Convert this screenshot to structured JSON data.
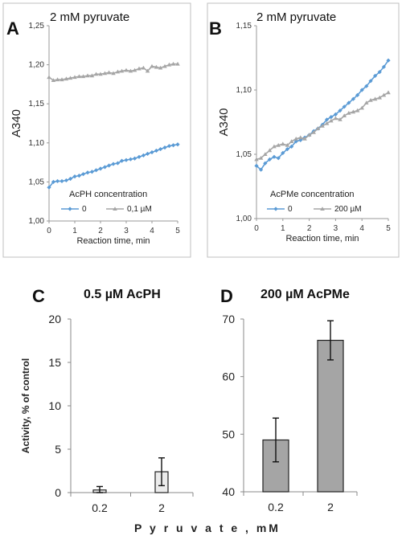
{
  "colors": {
    "blue": "#5b9bd5",
    "gray": "#a6a6a6",
    "barC": "#ececec",
    "barD": "#a5a5a5",
    "frame": "#bfbfbf"
  },
  "chart_data": [
    {
      "id": "A",
      "type": "line",
      "letter": "A",
      "title": "2 mM pyruvate",
      "xlabel": "Reaction time, min",
      "ylabel": "A340",
      "xlim": [
        0,
        5
      ],
      "ylim": [
        1.0,
        1.25
      ],
      "xticks": [
        "0",
        "1",
        "2",
        "3",
        "4",
        "5"
      ],
      "yticks": [
        "1,00",
        "1,05",
        "1,10",
        "1,15",
        "1,20",
        "1,25"
      ],
      "legend_title": "AcPH concentration",
      "series": [
        {
          "name": "0",
          "marker": "diamond",
          "color": "#5b9bd5",
          "x": [
            0,
            0.17,
            0.33,
            0.5,
            0.67,
            0.83,
            1.0,
            1.17,
            1.33,
            1.5,
            1.67,
            1.83,
            2.0,
            2.17,
            2.33,
            2.5,
            2.67,
            2.83,
            3.0,
            3.17,
            3.33,
            3.5,
            3.67,
            3.83,
            4.0,
            4.17,
            4.33,
            4.5,
            4.67,
            4.83,
            5.0
          ],
          "y": [
            1.043,
            1.05,
            1.051,
            1.051,
            1.052,
            1.054,
            1.057,
            1.058,
            1.06,
            1.062,
            1.063,
            1.065,
            1.067,
            1.069,
            1.071,
            1.073,
            1.074,
            1.077,
            1.078,
            1.079,
            1.08,
            1.082,
            1.084,
            1.086,
            1.088,
            1.09,
            1.092,
            1.094,
            1.096,
            1.097,
            1.098
          ]
        },
        {
          "name": "0,1 µM",
          "marker": "triangle",
          "color": "#a6a6a6",
          "x": [
            0,
            0.17,
            0.33,
            0.5,
            0.67,
            0.83,
            1.0,
            1.17,
            1.33,
            1.5,
            1.67,
            1.83,
            2.0,
            2.17,
            2.33,
            2.5,
            2.67,
            2.83,
            3.0,
            3.17,
            3.33,
            3.5,
            3.67,
            3.83,
            4.0,
            4.17,
            4.33,
            4.5,
            4.67,
            4.83,
            5.0
          ],
          "y": [
            1.184,
            1.18,
            1.181,
            1.181,
            1.182,
            1.183,
            1.184,
            1.185,
            1.185,
            1.186,
            1.186,
            1.188,
            1.188,
            1.189,
            1.19,
            1.189,
            1.191,
            1.192,
            1.193,
            1.192,
            1.193,
            1.195,
            1.196,
            1.192,
            1.198,
            1.197,
            1.196,
            1.198,
            1.2,
            1.201,
            1.201
          ]
        }
      ]
    },
    {
      "id": "B",
      "type": "line",
      "letter": "B",
      "title": "2 mM pyruvate",
      "xlabel": "Reaction time, min",
      "ylabel": "A340",
      "xlim": [
        0,
        5
      ],
      "ylim": [
        1.0,
        1.15
      ],
      "xticks": [
        "0",
        "1",
        "2",
        "3",
        "4",
        "5"
      ],
      "yticks": [
        "1,00",
        "1,05",
        "1,10",
        "1,15"
      ],
      "legend_title": "AcPMe concentration",
      "series": [
        {
          "name": "0",
          "marker": "diamond",
          "color": "#5b9bd5",
          "x": [
            0,
            0.17,
            0.33,
            0.5,
            0.67,
            0.83,
            1.0,
            1.17,
            1.33,
            1.5,
            1.67,
            1.83,
            2.0,
            2.17,
            2.33,
            2.5,
            2.67,
            2.83,
            3.0,
            3.17,
            3.33,
            3.5,
            3.67,
            3.83,
            4.0,
            4.17,
            4.33,
            4.5,
            4.67,
            4.83,
            5.0
          ],
          "y": [
            1.041,
            1.038,
            1.043,
            1.046,
            1.048,
            1.047,
            1.051,
            1.054,
            1.056,
            1.06,
            1.061,
            1.063,
            1.065,
            1.068,
            1.07,
            1.073,
            1.077,
            1.079,
            1.081,
            1.084,
            1.087,
            1.09,
            1.093,
            1.096,
            1.1,
            1.103,
            1.107,
            1.111,
            1.114,
            1.118,
            1.123
          ]
        },
        {
          "name": "200 µM",
          "marker": "triangle",
          "color": "#a6a6a6",
          "x": [
            0,
            0.17,
            0.33,
            0.5,
            0.67,
            0.83,
            1.0,
            1.17,
            1.33,
            1.5,
            1.67,
            1.83,
            2.0,
            2.17,
            2.33,
            2.5,
            2.67,
            2.83,
            3.0,
            3.17,
            3.33,
            3.5,
            3.67,
            3.83,
            4.0,
            4.17,
            4.33,
            4.5,
            4.67,
            4.83,
            5.0
          ],
          "y": [
            1.046,
            1.047,
            1.05,
            1.053,
            1.056,
            1.057,
            1.058,
            1.057,
            1.06,
            1.062,
            1.063,
            1.062,
            1.065,
            1.067,
            1.07,
            1.072,
            1.074,
            1.076,
            1.078,
            1.077,
            1.08,
            1.082,
            1.083,
            1.084,
            1.086,
            1.09,
            1.092,
            1.093,
            1.094,
            1.096,
            1.098
          ]
        }
      ]
    },
    {
      "id": "C",
      "type": "bar",
      "letter": "C",
      "title": "0.5 µM AcPH",
      "ylabel": "Activity, % of control",
      "categories": [
        "0.2",
        "2"
      ],
      "values": [
        0.3,
        2.4
      ],
      "errors": [
        0.4,
        1.6
      ],
      "ylim": [
        0,
        20
      ],
      "yticks": [
        "0",
        "5",
        "10",
        "15",
        "20"
      ],
      "color": "#ececec"
    },
    {
      "id": "D",
      "type": "bar",
      "letter": "D",
      "title": "200 µM AcPMe",
      "categories": [
        "0.2",
        "2"
      ],
      "values": [
        49.0,
        66.3
      ],
      "errors": [
        3.8,
        3.4
      ],
      "ylim": [
        40,
        70
      ],
      "yticks": [
        "40",
        "50",
        "60",
        "70"
      ],
      "color": "#a5a5a5"
    }
  ],
  "shared_xlabel": "P y r u v a t e ,  mM"
}
